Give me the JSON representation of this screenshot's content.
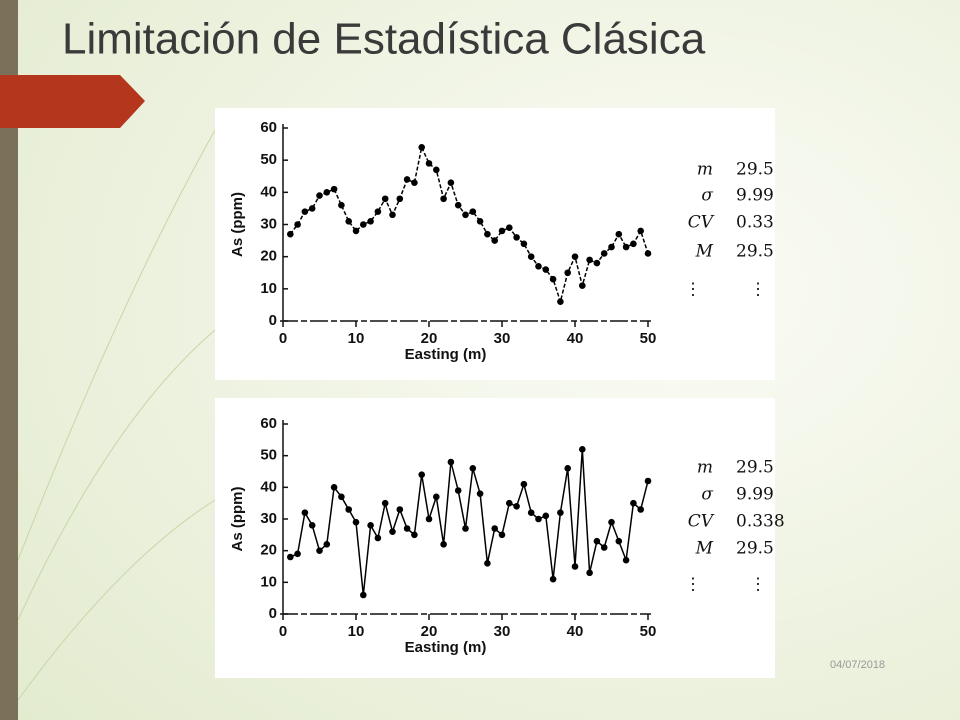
{
  "slide": {
    "title": "Limitación de Estadística Clásica",
    "date": "04/07/2018"
  },
  "chart_data": [
    {
      "type": "line",
      "xlabel": "Easting (m)",
      "ylabel": "As (ppm)",
      "color": "#000000",
      "x": [
        1,
        2,
        3,
        4,
        5,
        6,
        7,
        8,
        9,
        10,
        11,
        12,
        13,
        14,
        15,
        16,
        17,
        18,
        19,
        20,
        21,
        22,
        23,
        24,
        25,
        26,
        27,
        28,
        29,
        30,
        31,
        32,
        33,
        34,
        35,
        36,
        37,
        38,
        39,
        40,
        41,
        42,
        43,
        44,
        45,
        46,
        47,
        48,
        49,
        50
      ],
      "values": [
        27,
        30,
        34,
        35,
        39,
        40,
        41,
        36,
        31,
        28,
        30,
        31,
        34,
        38,
        33,
        38,
        44,
        43,
        54,
        49,
        47,
        38,
        43,
        36,
        33,
        34,
        31,
        27,
        25,
        28,
        29,
        26,
        24,
        20,
        17,
        16,
        13,
        6,
        15,
        20,
        11,
        19,
        18,
        21,
        23,
        27,
        23,
        24,
        28,
        21
      ],
      "xlim": [
        0,
        50
      ],
      "ylim": [
        0,
        60
      ],
      "xticks": [
        0,
        10,
        20,
        30,
        40,
        50
      ],
      "yticks": [
        0,
        10,
        20,
        30,
        40,
        50,
        60
      ],
      "stats": [
        {
          "label": "m",
          "value": 29.5
        },
        {
          "label": "σ",
          "value": 9.99
        },
        {
          "label": "CV",
          "value": 0.33
        },
        {
          "label": "M",
          "value": 29.5
        }
      ],
      "ellipsis": "⋮"
    },
    {
      "type": "line",
      "xlabel": "Easting (m)",
      "ylabel": "As (ppm)",
      "color": "#000000",
      "x": [
        1,
        2,
        3,
        4,
        5,
        6,
        7,
        8,
        9,
        10,
        11,
        12,
        13,
        14,
        15,
        16,
        17,
        18,
        19,
        20,
        21,
        22,
        23,
        24,
        25,
        26,
        27,
        28,
        29,
        30,
        31,
        32,
        33,
        34,
        35,
        36,
        37,
        38,
        39,
        40,
        41,
        42,
        43,
        44,
        45,
        46,
        47,
        48,
        49,
        50
      ],
      "values": [
        18,
        19,
        32,
        28,
        20,
        22,
        40,
        37,
        33,
        29,
        6,
        28,
        24,
        35,
        26,
        33,
        27,
        25,
        44,
        30,
        37,
        22,
        48,
        39,
        27,
        46,
        38,
        16,
        27,
        25,
        35,
        34,
        41,
        32,
        30,
        31,
        11,
        32,
        46,
        15,
        52,
        13,
        23,
        21,
        29,
        23,
        17,
        35,
        33,
        42
      ],
      "xlim": [
        0,
        50
      ],
      "ylim": [
        0,
        60
      ],
      "xticks": [
        0,
        10,
        20,
        30,
        40,
        50
      ],
      "yticks": [
        0,
        10,
        20,
        30,
        40,
        50,
        60
      ],
      "stats": [
        {
          "label": "m",
          "value": 29.5
        },
        {
          "label": "σ",
          "value": 9.99
        },
        {
          "label": "CV",
          "value": 0.338
        },
        {
          "label": "M",
          "value": 29.5
        }
      ],
      "ellipsis": "⋮"
    }
  ]
}
